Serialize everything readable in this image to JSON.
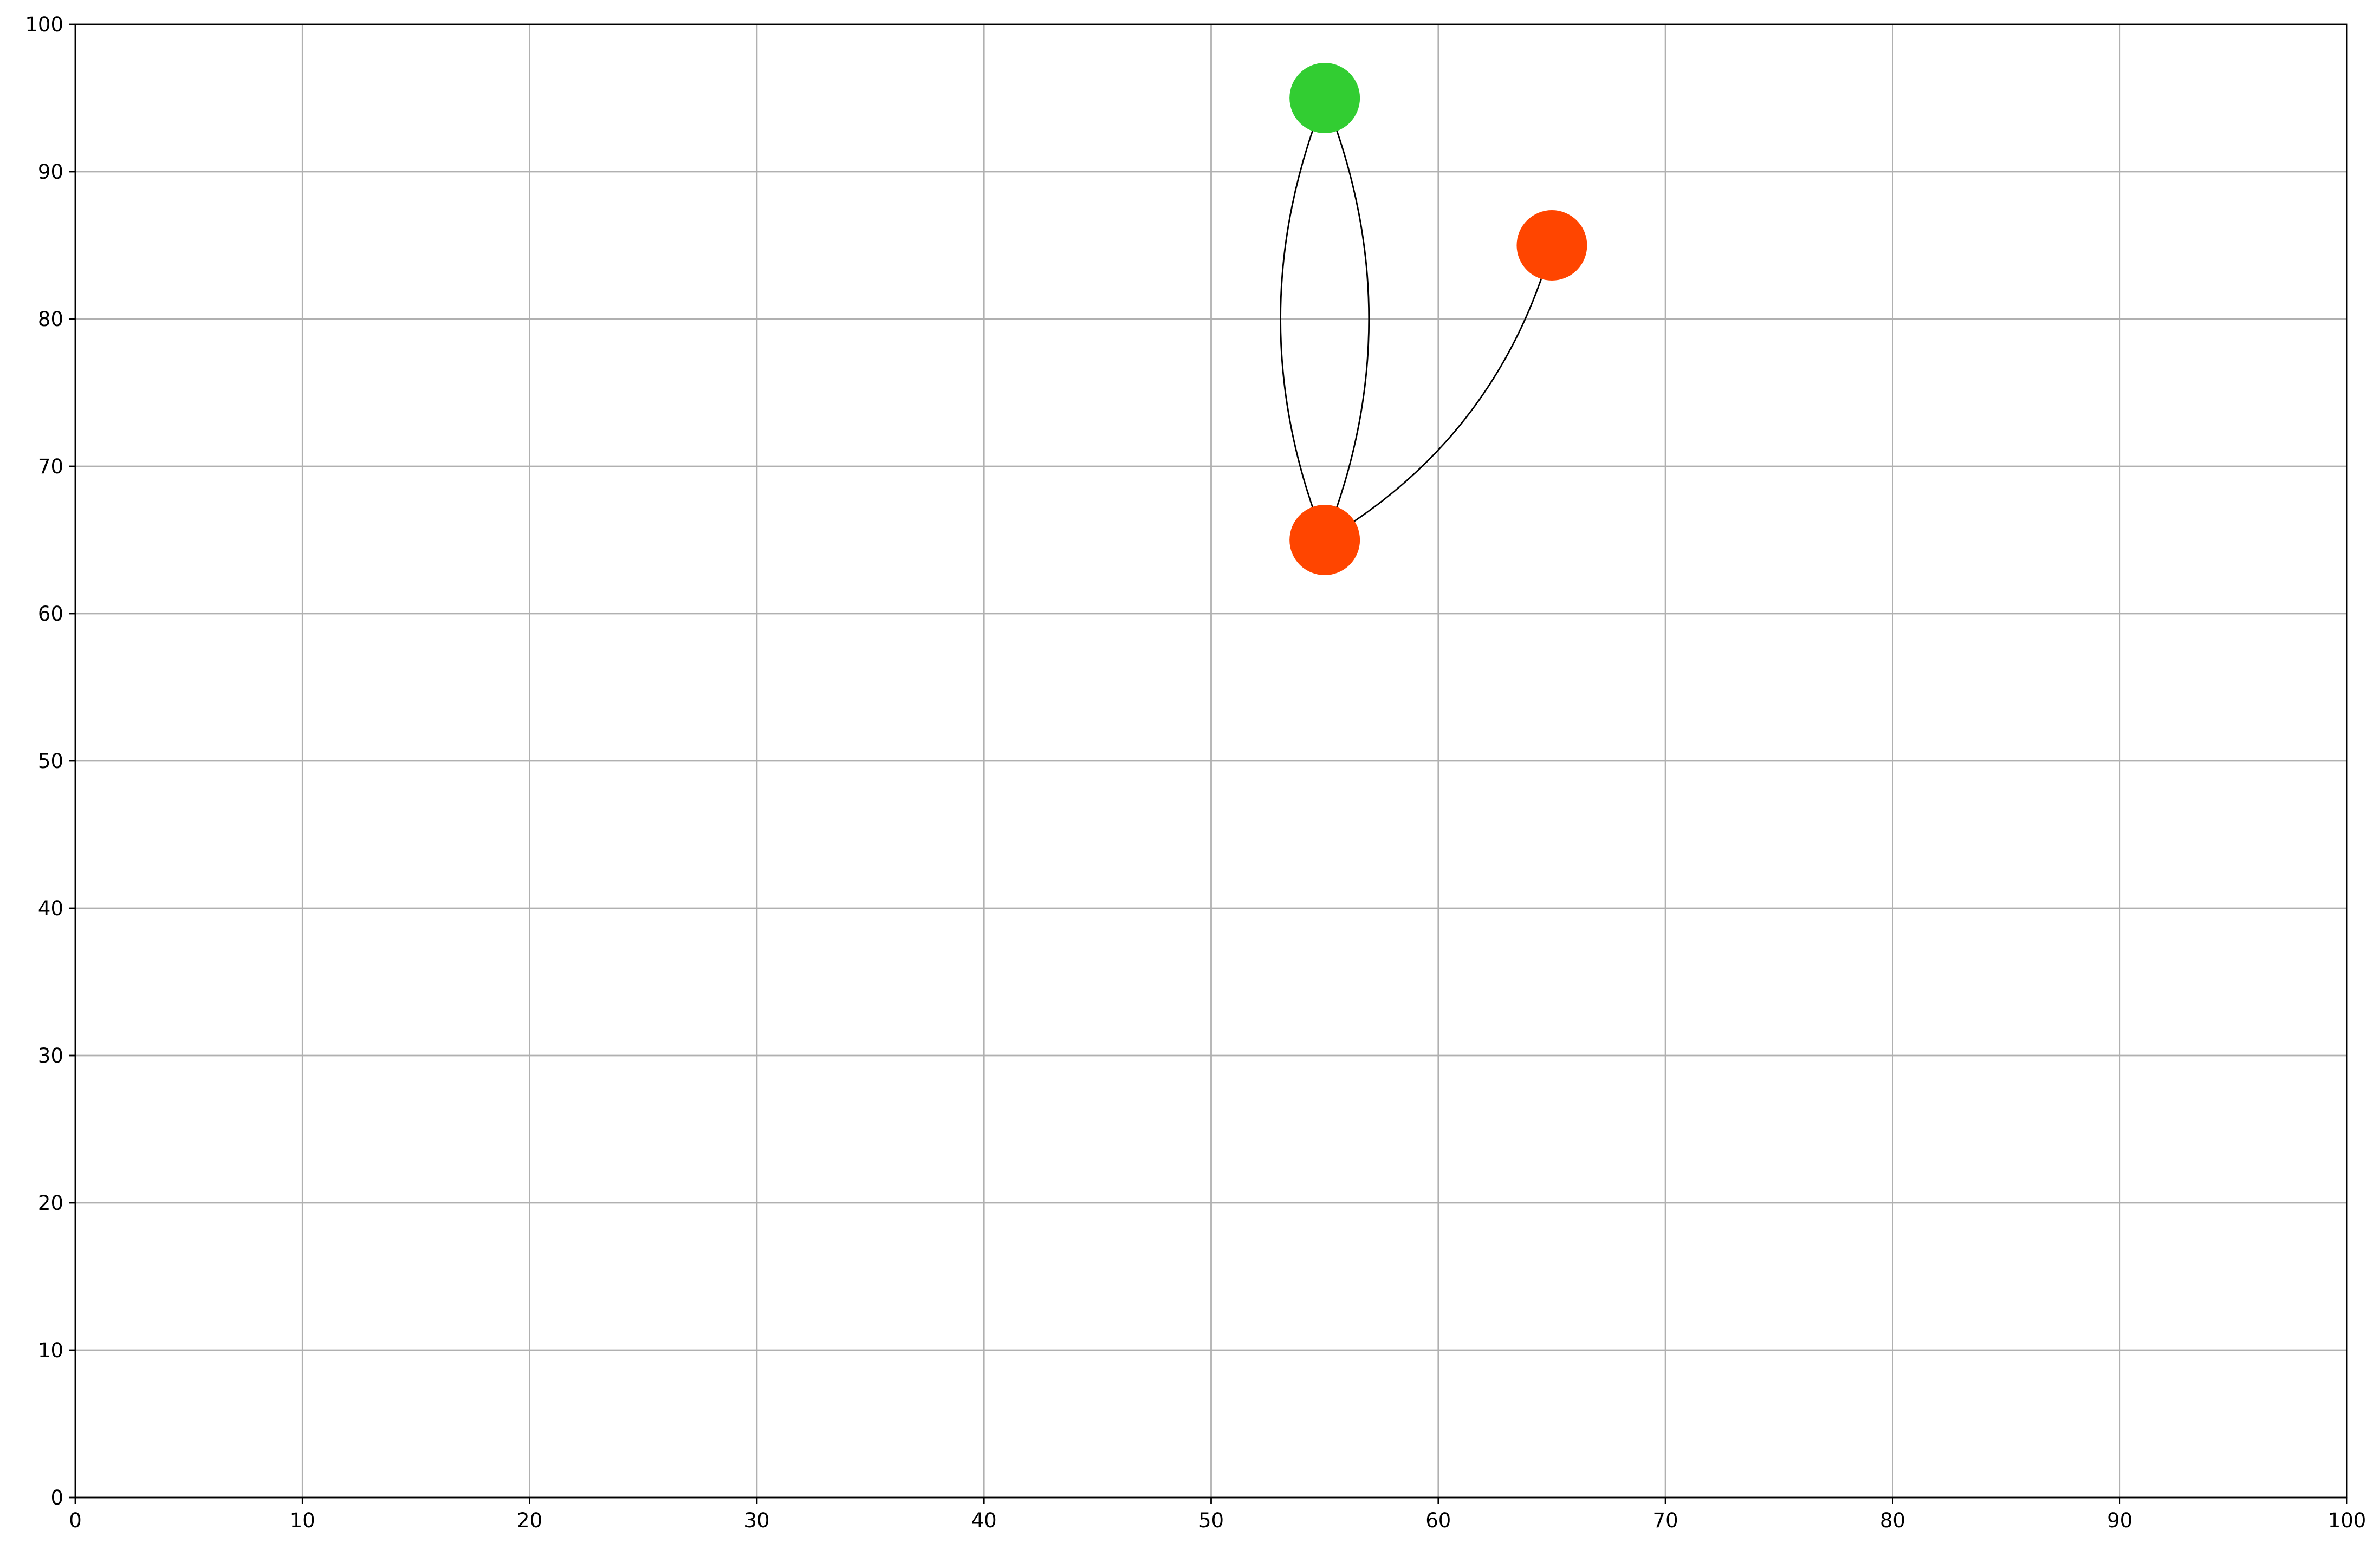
{
  "chart_data": {
    "type": "scatter",
    "title": "",
    "xlabel": "",
    "ylabel": "",
    "xlim": [
      0,
      100
    ],
    "ylim": [
      0,
      100
    ],
    "grid": true,
    "x_ticks": [
      0,
      10,
      20,
      30,
      40,
      50,
      60,
      70,
      80,
      90,
      100
    ],
    "y_ticks": [
      0,
      10,
      20,
      30,
      40,
      50,
      60,
      70,
      80,
      90,
      100
    ],
    "nodes": [
      {
        "id": "n1",
        "x": 55,
        "y": 95,
        "color": "#32cd32"
      },
      {
        "id": "n2",
        "x": 65,
        "y": 85,
        "color": "#ff4500"
      },
      {
        "id": "n3",
        "x": 55,
        "y": 65,
        "color": "#ff4500"
      }
    ],
    "edges": [
      {
        "from": "n1",
        "to": "n3",
        "bend": 0.2
      },
      {
        "from": "n3",
        "to": "n1",
        "bend": 0.2
      },
      {
        "from": "n2",
        "to": "n3",
        "bend": 0.2
      }
    ]
  }
}
